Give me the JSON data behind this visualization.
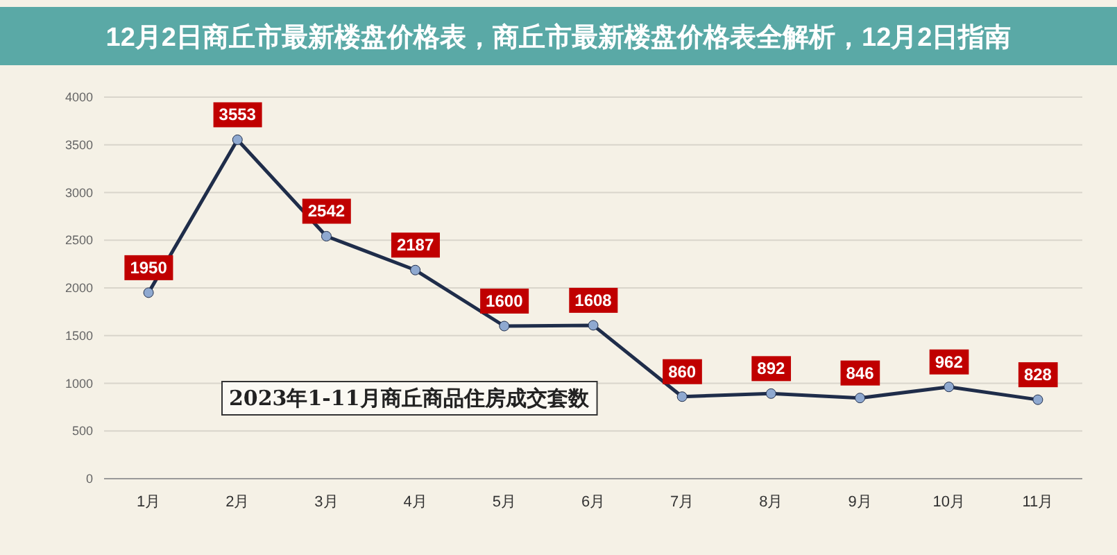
{
  "chart_data": {
    "type": "line",
    "title": "12月2日商丘市最新楼盘价格表，商丘市最新楼盘价格表全解析，12月2日指南",
    "annotations": [
      "2023年1-11月商丘商品住房成交套数"
    ],
    "categories": [
      "1月",
      "2月",
      "3月",
      "4月",
      "5月",
      "6月",
      "7月",
      "8月",
      "9月",
      "10月",
      "11月"
    ],
    "series": [
      {
        "color": "#1f2d4a",
        "values": [
          1950,
          3553,
          2542,
          2187,
          1600,
          1608,
          860,
          892,
          846,
          962,
          828
        ]
      }
    ],
    "ylim": [
      0,
      4000
    ],
    "yticks": [
      0,
      500,
      1000,
      1500,
      2000,
      2500,
      3000,
      3500,
      4000
    ],
    "grid": "y",
    "marker": "circle",
    "data_labels": true
  }
}
